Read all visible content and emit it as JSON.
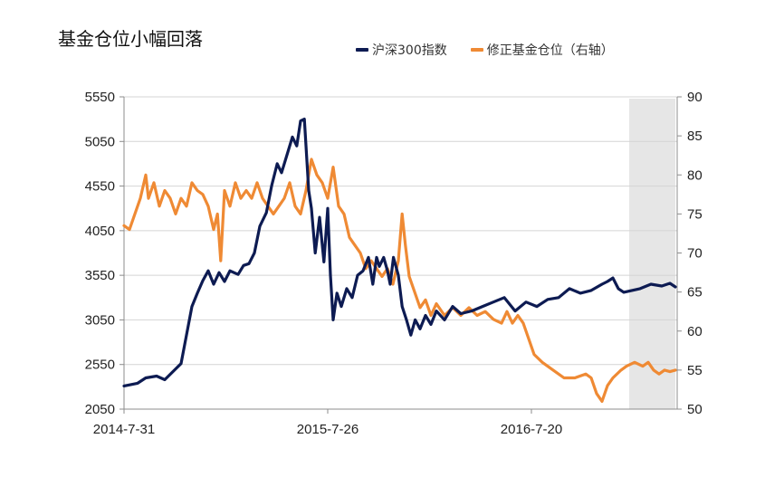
{
  "chart_data": {
    "type": "line",
    "title": "基金仓位小幅回落",
    "categories": [
      "2014-7-31",
      "2015-7-26",
      "2016-7-20"
    ],
    "y_left": {
      "ticks": [
        2050,
        2550,
        3050,
        3550,
        4050,
        4550,
        5050,
        5550
      ],
      "ylim": [
        2050,
        5550
      ]
    },
    "y_right": {
      "label": "右轴",
      "ticks": [
        50,
        55,
        60,
        65,
        70,
        75,
        80,
        85,
        90
      ],
      "ylim": [
        50,
        90
      ]
    },
    "x_domain": [
      0,
      1000
    ],
    "x_ticks": [
      {
        "x": 0,
        "label": "2014-7-31"
      },
      {
        "x": 375,
        "label": "2015-7-26"
      },
      {
        "x": 750,
        "label": "2016-7-20"
      }
    ],
    "shaded_region": [
      930,
      1015
    ],
    "series": [
      {
        "name": "沪深300指数",
        "axis": "left",
        "color": "#0d1b52",
        "points": [
          [
            0,
            2310
          ],
          [
            25,
            2340
          ],
          [
            40,
            2400
          ],
          [
            60,
            2420
          ],
          [
            75,
            2380
          ],
          [
            95,
            2500
          ],
          [
            105,
            2560
          ],
          [
            125,
            3200
          ],
          [
            135,
            3350
          ],
          [
            145,
            3490
          ],
          [
            155,
            3600
          ],
          [
            165,
            3450
          ],
          [
            175,
            3580
          ],
          [
            185,
            3480
          ],
          [
            195,
            3600
          ],
          [
            210,
            3560
          ],
          [
            220,
            3660
          ],
          [
            230,
            3680
          ],
          [
            240,
            3800
          ],
          [
            250,
            4100
          ],
          [
            262,
            4250
          ],
          [
            272,
            4560
          ],
          [
            282,
            4800
          ],
          [
            290,
            4700
          ],
          [
            300,
            4900
          ],
          [
            310,
            5100
          ],
          [
            318,
            5000
          ],
          [
            325,
            5280
          ],
          [
            332,
            5300
          ],
          [
            340,
            4500
          ],
          [
            345,
            4300
          ],
          [
            352,
            3800
          ],
          [
            360,
            4200
          ],
          [
            368,
            3700
          ],
          [
            375,
            4300
          ],
          [
            380,
            3550
          ],
          [
            385,
            3050
          ],
          [
            392,
            3350
          ],
          [
            400,
            3200
          ],
          [
            410,
            3400
          ],
          [
            420,
            3300
          ],
          [
            430,
            3550
          ],
          [
            440,
            3600
          ],
          [
            450,
            3750
          ],
          [
            458,
            3450
          ],
          [
            465,
            3750
          ],
          [
            470,
            3650
          ],
          [
            478,
            3750
          ],
          [
            485,
            3600
          ],
          [
            490,
            3450
          ],
          [
            496,
            3750
          ],
          [
            505,
            3550
          ],
          [
            512,
            3200
          ],
          [
            520,
            3050
          ],
          [
            528,
            2880
          ],
          [
            536,
            3050
          ],
          [
            545,
            2950
          ],
          [
            555,
            3100
          ],
          [
            565,
            3000
          ],
          [
            575,
            3150
          ],
          [
            590,
            3050
          ],
          [
            605,
            3200
          ],
          [
            620,
            3120
          ],
          [
            640,
            3150
          ],
          [
            660,
            3200
          ],
          [
            680,
            3250
          ],
          [
            700,
            3300
          ],
          [
            720,
            3150
          ],
          [
            740,
            3250
          ],
          [
            760,
            3200
          ],
          [
            780,
            3280
          ],
          [
            800,
            3300
          ],
          [
            820,
            3400
          ],
          [
            840,
            3350
          ],
          [
            860,
            3380
          ],
          [
            880,
            3450
          ],
          [
            890,
            3480
          ],
          [
            900,
            3520
          ],
          [
            910,
            3400
          ],
          [
            920,
            3360
          ],
          [
            935,
            3380
          ],
          [
            950,
            3400
          ],
          [
            970,
            3450
          ],
          [
            990,
            3430
          ],
          [
            1005,
            3460
          ],
          [
            1015,
            3420
          ]
        ]
      },
      {
        "name": "修正基金仓位",
        "axis": "right",
        "color": "#ef8a34",
        "points": [
          [
            0,
            73.5
          ],
          [
            10,
            73
          ],
          [
            20,
            75
          ],
          [
            30,
            77
          ],
          [
            40,
            80
          ],
          [
            45,
            77
          ],
          [
            55,
            79
          ],
          [
            65,
            76
          ],
          [
            75,
            78
          ],
          [
            85,
            77
          ],
          [
            95,
            75
          ],
          [
            105,
            77
          ],
          [
            115,
            76
          ],
          [
            125,
            79
          ],
          [
            135,
            78
          ],
          [
            145,
            77.5
          ],
          [
            155,
            76
          ],
          [
            165,
            73
          ],
          [
            172,
            75
          ],
          [
            178,
            69
          ],
          [
            185,
            78
          ],
          [
            195,
            76
          ],
          [
            205,
            79
          ],
          [
            215,
            77
          ],
          [
            225,
            78
          ],
          [
            235,
            77
          ],
          [
            245,
            79
          ],
          [
            255,
            77
          ],
          [
            265,
            76
          ],
          [
            275,
            75
          ],
          [
            285,
            76
          ],
          [
            295,
            77
          ],
          [
            305,
            79
          ],
          [
            315,
            76
          ],
          [
            325,
            75
          ],
          [
            335,
            78
          ],
          [
            345,
            82
          ],
          [
            355,
            80
          ],
          [
            365,
            79
          ],
          [
            375,
            77
          ],
          [
            385,
            81
          ],
          [
            395,
            76
          ],
          [
            405,
            75
          ],
          [
            415,
            72
          ],
          [
            425,
            71
          ],
          [
            435,
            70
          ],
          [
            445,
            68
          ],
          [
            455,
            69
          ],
          [
            465,
            68
          ],
          [
            475,
            67
          ],
          [
            485,
            68
          ],
          [
            495,
            66
          ],
          [
            505,
            69
          ],
          [
            512,
            75
          ],
          [
            518,
            71
          ],
          [
            525,
            67
          ],
          [
            535,
            65
          ],
          [
            545,
            63
          ],
          [
            555,
            64
          ],
          [
            565,
            62
          ],
          [
            575,
            63.5
          ],
          [
            590,
            62
          ],
          [
            605,
            63
          ],
          [
            620,
            62
          ],
          [
            635,
            63
          ],
          [
            650,
            62
          ],
          [
            665,
            62.5
          ],
          [
            680,
            61.5
          ],
          [
            695,
            61
          ],
          [
            705,
            62.5
          ],
          [
            715,
            61
          ],
          [
            725,
            62
          ],
          [
            735,
            61
          ],
          [
            745,
            59
          ],
          [
            755,
            57
          ],
          [
            770,
            56
          ],
          [
            790,
            55
          ],
          [
            810,
            54
          ],
          [
            830,
            54
          ],
          [
            850,
            54.5
          ],
          [
            860,
            54
          ],
          [
            870,
            52
          ],
          [
            880,
            51
          ],
          [
            890,
            53
          ],
          [
            900,
            54
          ],
          [
            915,
            55
          ],
          [
            925,
            55.5
          ],
          [
            940,
            56
          ],
          [
            955,
            55.5
          ],
          [
            965,
            56
          ],
          [
            975,
            55
          ],
          [
            985,
            54.5
          ],
          [
            995,
            55
          ],
          [
            1005,
            54.8
          ],
          [
            1015,
            55
          ]
        ]
      }
    ],
    "grid": true,
    "legend": "top"
  }
}
